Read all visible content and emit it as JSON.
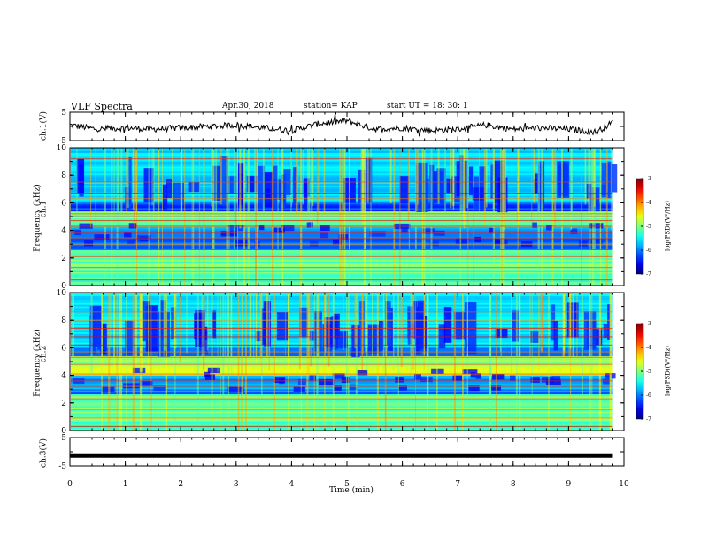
{
  "header": {
    "title": "VLF Spectra",
    "date": "Apr.30, 2018",
    "station": "station= KAP",
    "start": "start  UT  =   18: 30: 1"
  },
  "chart_data": [
    {
      "type": "line",
      "ylabel": "ch.1(V)",
      "ylim": [
        -5,
        5
      ],
      "yticklabels": [
        "5",
        "-5"
      ],
      "xlim": [
        0,
        10
      ],
      "description_series": "ch.1 waveform amplitude vs time",
      "series": [
        {
          "values_note": "noisy trace fluctuating around -0.5 V",
          "x": [
            0,
            0.5,
            1,
            1.5,
            2,
            2.5,
            3,
            3.5,
            4,
            4.5,
            5,
            5.5,
            6,
            6.5,
            7,
            7.5,
            8,
            8.5,
            9,
            9.5,
            9.8
          ],
          "y": [
            0.5,
            -1,
            -0.5,
            -1,
            -0.5,
            0,
            0.5,
            -0.5,
            -1.5,
            1,
            2,
            -1,
            -0.5,
            -1.5,
            -1,
            0.5,
            -1,
            -0.5,
            -1,
            -2,
            1.5
          ]
        }
      ]
    },
    {
      "type": "heatmap",
      "ylabel_top": "ch.1",
      "ylabel": "Frequency (kHz)",
      "ylim": [
        0,
        10
      ],
      "yticks": [
        0,
        2,
        4,
        6,
        8,
        10
      ],
      "yticklabels": [
        "0",
        "2",
        "4",
        "6",
        "8",
        "10"
      ],
      "xlim": [
        0,
        10
      ],
      "colorbar": {
        "label": "log(PSD)(V²/Hz)",
        "min": -7,
        "max": -3,
        "ticklabels": [
          "-3",
          "-4",
          "-5",
          "-6",
          "-7"
        ]
      }
    },
    {
      "type": "heatmap",
      "ylabel_top": "ch.2",
      "ylabel": "Frequency (kHz)",
      "ylim": [
        0,
        10
      ],
      "yticks": [
        0,
        2,
        4,
        6,
        8,
        10
      ],
      "yticklabels": [
        "0",
        "2",
        "4",
        "6",
        "8",
        "10"
      ],
      "xlim": [
        0,
        10
      ],
      "colorbar": {
        "label": "log(PSD)(V²/Hz)",
        "min": -7,
        "max": -3,
        "ticklabels": [
          "-3",
          "-4",
          "-5",
          "-6",
          "-7"
        ]
      }
    },
    {
      "type": "line",
      "ylabel": "ch.3(V)",
      "ylim": [
        -5,
        5
      ],
      "yticklabels": [
        "5",
        "-5"
      ],
      "xlim": [
        0,
        10
      ],
      "series": [
        {
          "x": [
            0,
            10
          ],
          "y": [
            -1.5,
            -1.5
          ]
        }
      ]
    }
  ],
  "xaxis": {
    "label": "Time (min)",
    "ticklabels": [
      "0",
      "1",
      "2",
      "3",
      "4",
      "5",
      "6",
      "7",
      "8",
      "9",
      "10"
    ]
  }
}
